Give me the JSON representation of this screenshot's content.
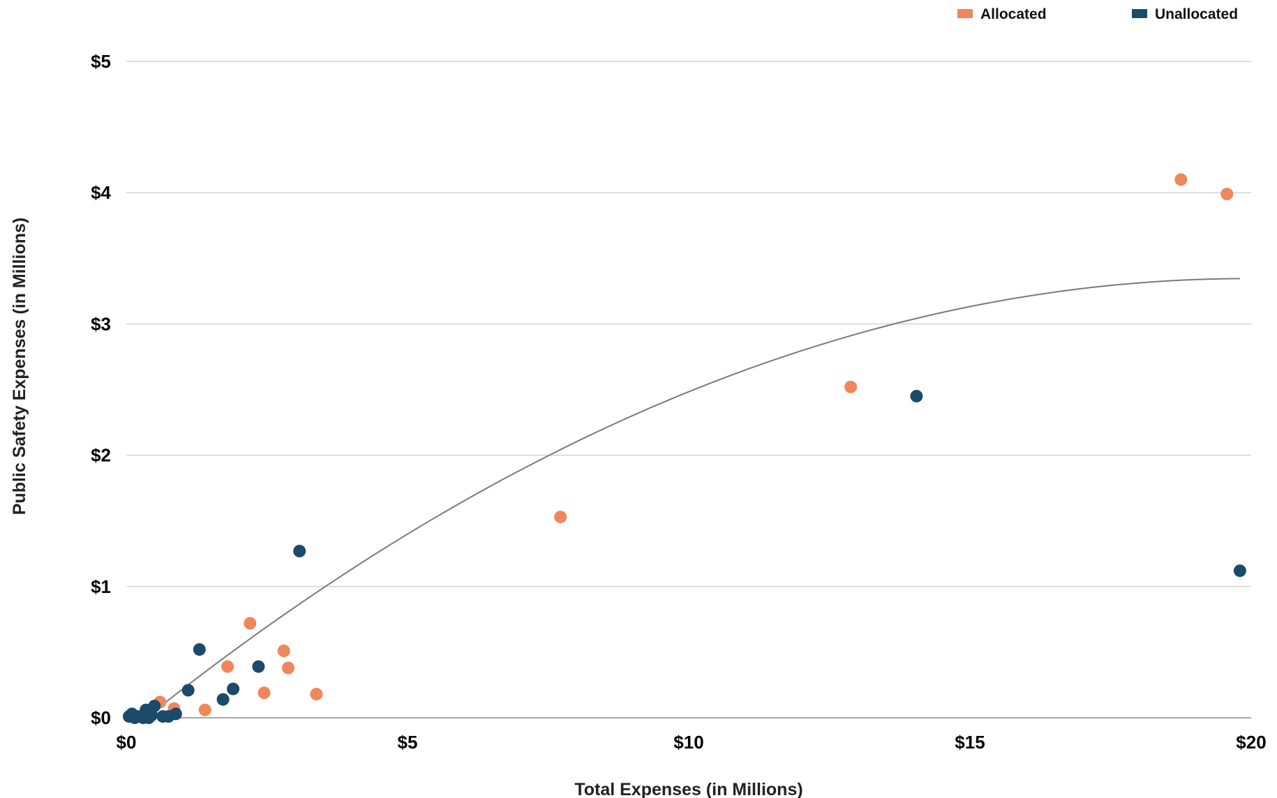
{
  "chart_data": {
    "type": "scatter",
    "title": "",
    "xlabel": "Total Expenses (in Millions)",
    "ylabel": "Public Safety Expenses (in Millions)",
    "xlim": [
      0,
      20
    ],
    "ylim": [
      0,
      5
    ],
    "x_ticks": [
      0,
      5,
      10,
      15,
      20
    ],
    "x_tick_labels": [
      "$0",
      "$5",
      "$10",
      "$15",
      "$20"
    ],
    "y_ticks": [
      0,
      1,
      2,
      3,
      4,
      5
    ],
    "y_tick_labels": [
      "$0",
      "$1",
      "$2",
      "$3",
      "$4",
      "$5"
    ],
    "grid": "horizontal",
    "legend": "top-right",
    "series": [
      {
        "name": "Allocated",
        "color": "#f0865b",
        "points": [
          {
            "x": 0.6,
            "y": 0.12
          },
          {
            "x": 0.85,
            "y": 0.07
          },
          {
            "x": 1.4,
            "y": 0.06
          },
          {
            "x": 1.8,
            "y": 0.39
          },
          {
            "x": 2.2,
            "y": 0.72
          },
          {
            "x": 2.45,
            "y": 0.19
          },
          {
            "x": 2.8,
            "y": 0.51
          },
          {
            "x": 2.88,
            "y": 0.38
          },
          {
            "x": 3.38,
            "y": 0.18
          },
          {
            "x": 7.72,
            "y": 1.53
          },
          {
            "x": 12.88,
            "y": 2.52
          },
          {
            "x": 18.75,
            "y": 4.1
          },
          {
            "x": 19.57,
            "y": 3.99
          }
        ]
      },
      {
        "name": "Unallocated",
        "color": "#1b4a6b",
        "points": [
          {
            "x": 0.05,
            "y": 0.01
          },
          {
            "x": 0.1,
            "y": 0.03
          },
          {
            "x": 0.15,
            "y": 0.0
          },
          {
            "x": 0.2,
            "y": 0.01
          },
          {
            "x": 0.3,
            "y": 0.0
          },
          {
            "x": 0.35,
            "y": 0.06
          },
          {
            "x": 0.4,
            "y": 0.0
          },
          {
            "x": 0.45,
            "y": 0.02
          },
          {
            "x": 0.5,
            "y": 0.09
          },
          {
            "x": 0.65,
            "y": 0.01
          },
          {
            "x": 0.75,
            "y": 0.01
          },
          {
            "x": 0.88,
            "y": 0.03
          },
          {
            "x": 1.1,
            "y": 0.21
          },
          {
            "x": 1.3,
            "y": 0.52
          },
          {
            "x": 1.72,
            "y": 0.14
          },
          {
            "x": 1.9,
            "y": 0.22
          },
          {
            "x": 2.35,
            "y": 0.39
          },
          {
            "x": 3.08,
            "y": 1.27
          },
          {
            "x": 14.05,
            "y": 2.45
          },
          {
            "x": 19.8,
            "y": 1.12
          }
        ]
      }
    ],
    "trendline": {
      "type": "polynomial",
      "color": "#7a7a7a",
      "x_range": [
        0.35,
        19.8
      ],
      "coefficients": [
        -0.1205,
        0.3475,
        -0.00871
      ]
    }
  }
}
